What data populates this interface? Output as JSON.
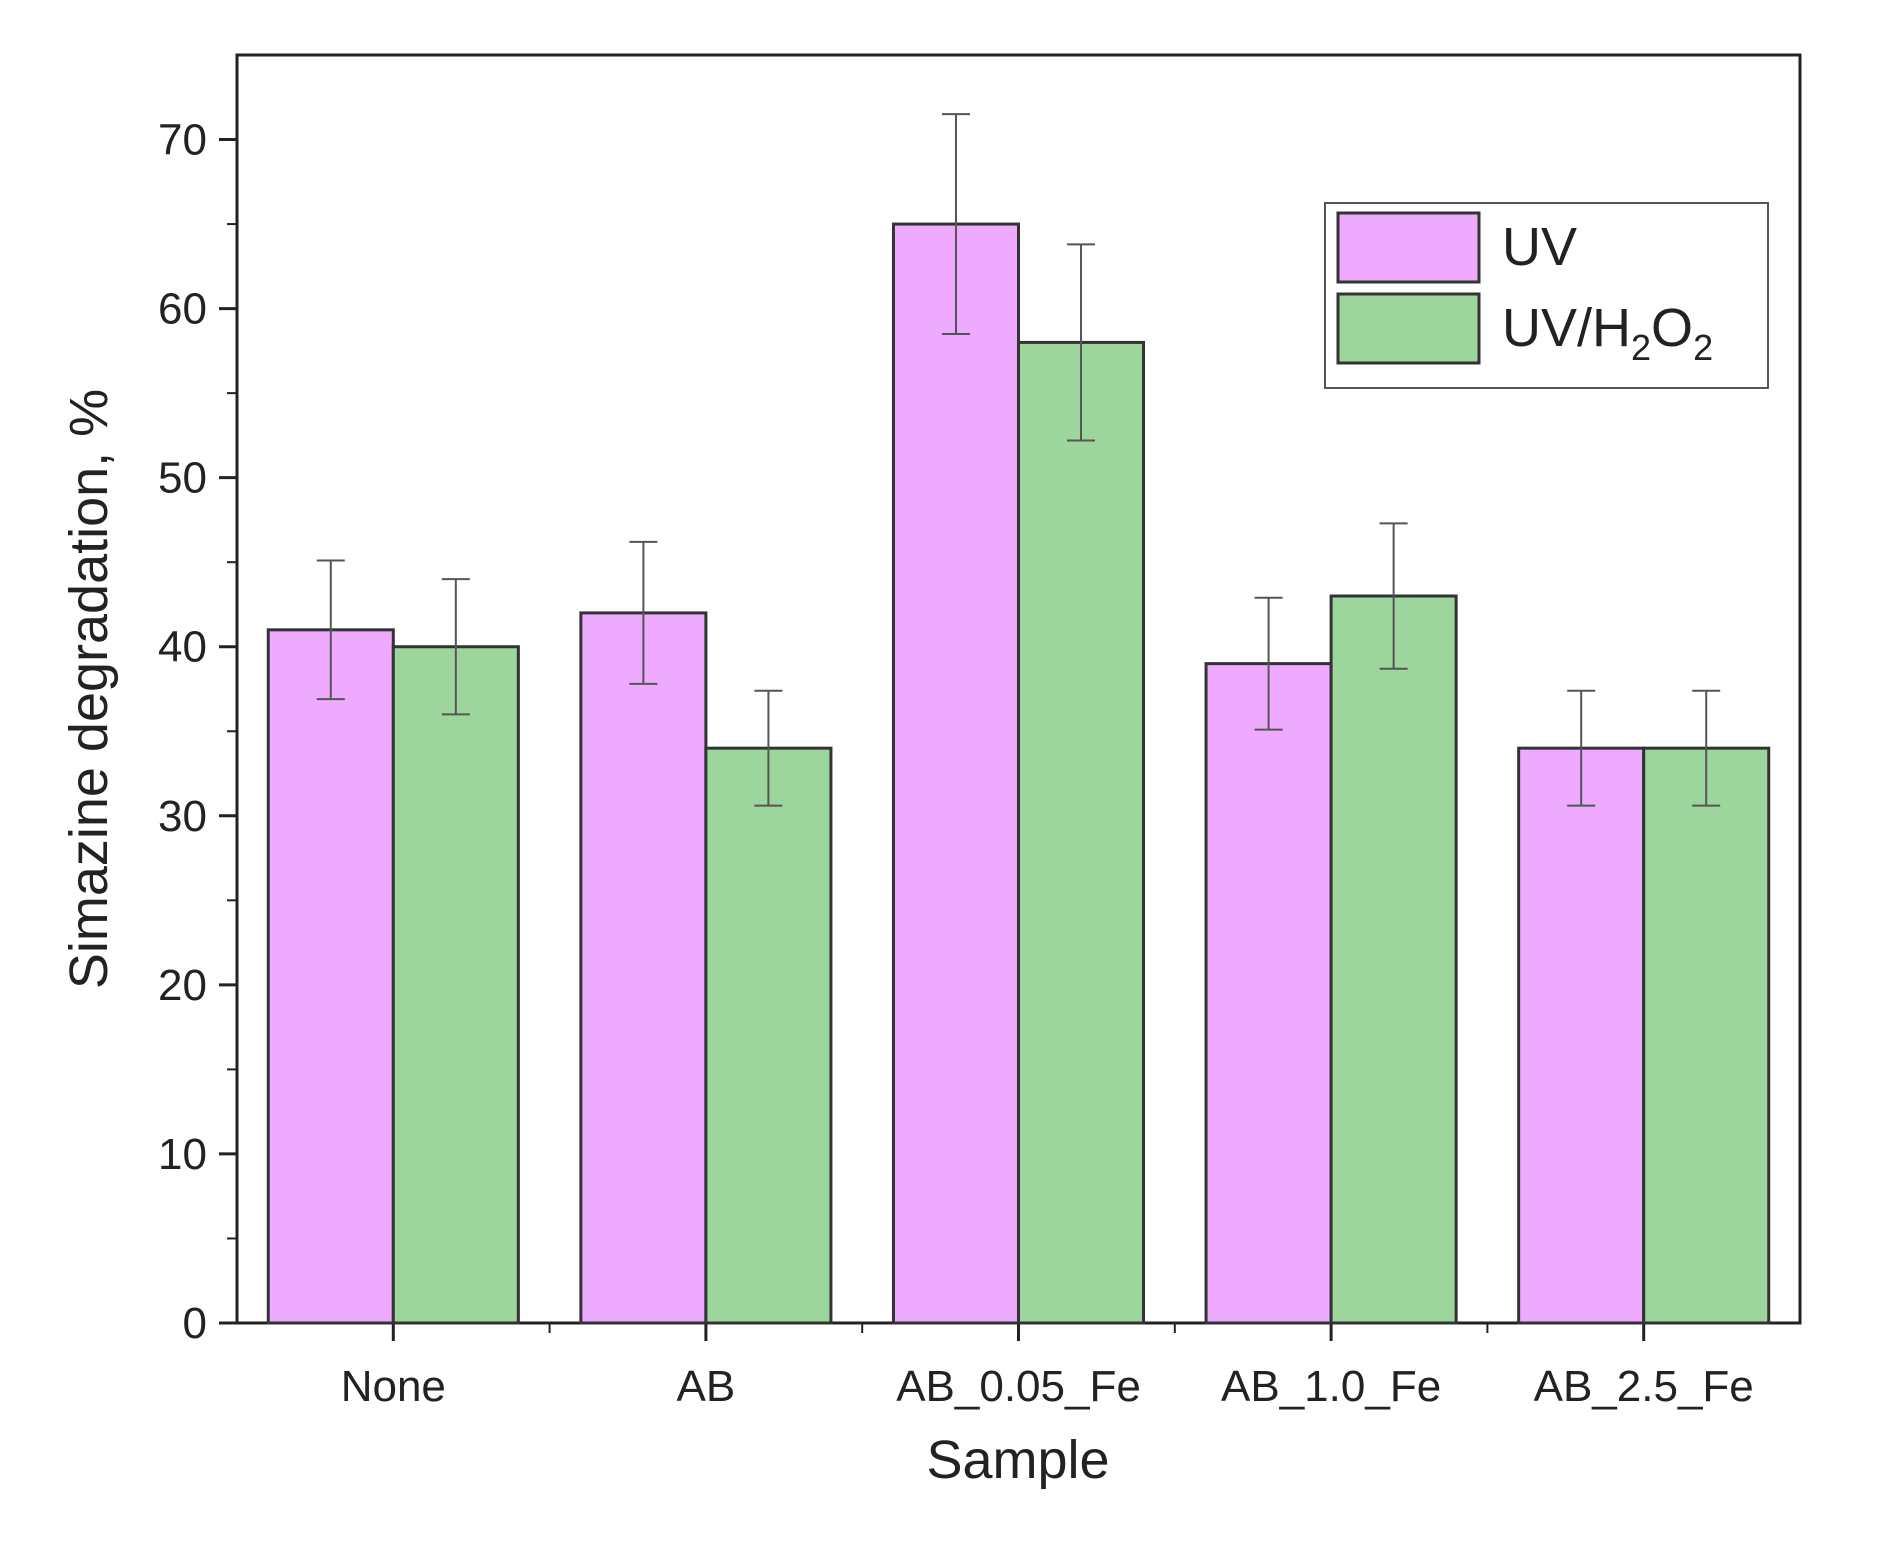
{
  "chart_data": {
    "type": "bar",
    "title": "",
    "xlabel": "Sample",
    "ylabel": "Simazine degradation, %",
    "ylim": [
      0,
      75
    ],
    "yticks": [
      0,
      10,
      20,
      30,
      40,
      50,
      60,
      70
    ],
    "categories": [
      "None",
      "AB",
      "AB_0.05_Fe",
      "AB_1.0_Fe",
      "AB_2.5_Fe"
    ],
    "series": [
      {
        "name": "UV",
        "color": "#eeaaff",
        "values": [
          41,
          42,
          65,
          39,
          34
        ],
        "errors": [
          4.1,
          4.2,
          6.5,
          3.9,
          3.4
        ]
      },
      {
        "name": "UV/H2O2",
        "color": "#9dd69d",
        "values": [
          40,
          34,
          58,
          43,
          34
        ],
        "errors": [
          4.0,
          3.4,
          5.8,
          4.3,
          3.4
        ]
      }
    ],
    "legend": {
      "position": "top-right",
      "entries": [
        {
          "base": "UV",
          "sub1": "",
          "mid": "",
          "sub2": ""
        },
        {
          "base": "UV/H",
          "sub1": "2",
          "mid": "O",
          "sub2": "2"
        }
      ]
    },
    "grid": false
  }
}
